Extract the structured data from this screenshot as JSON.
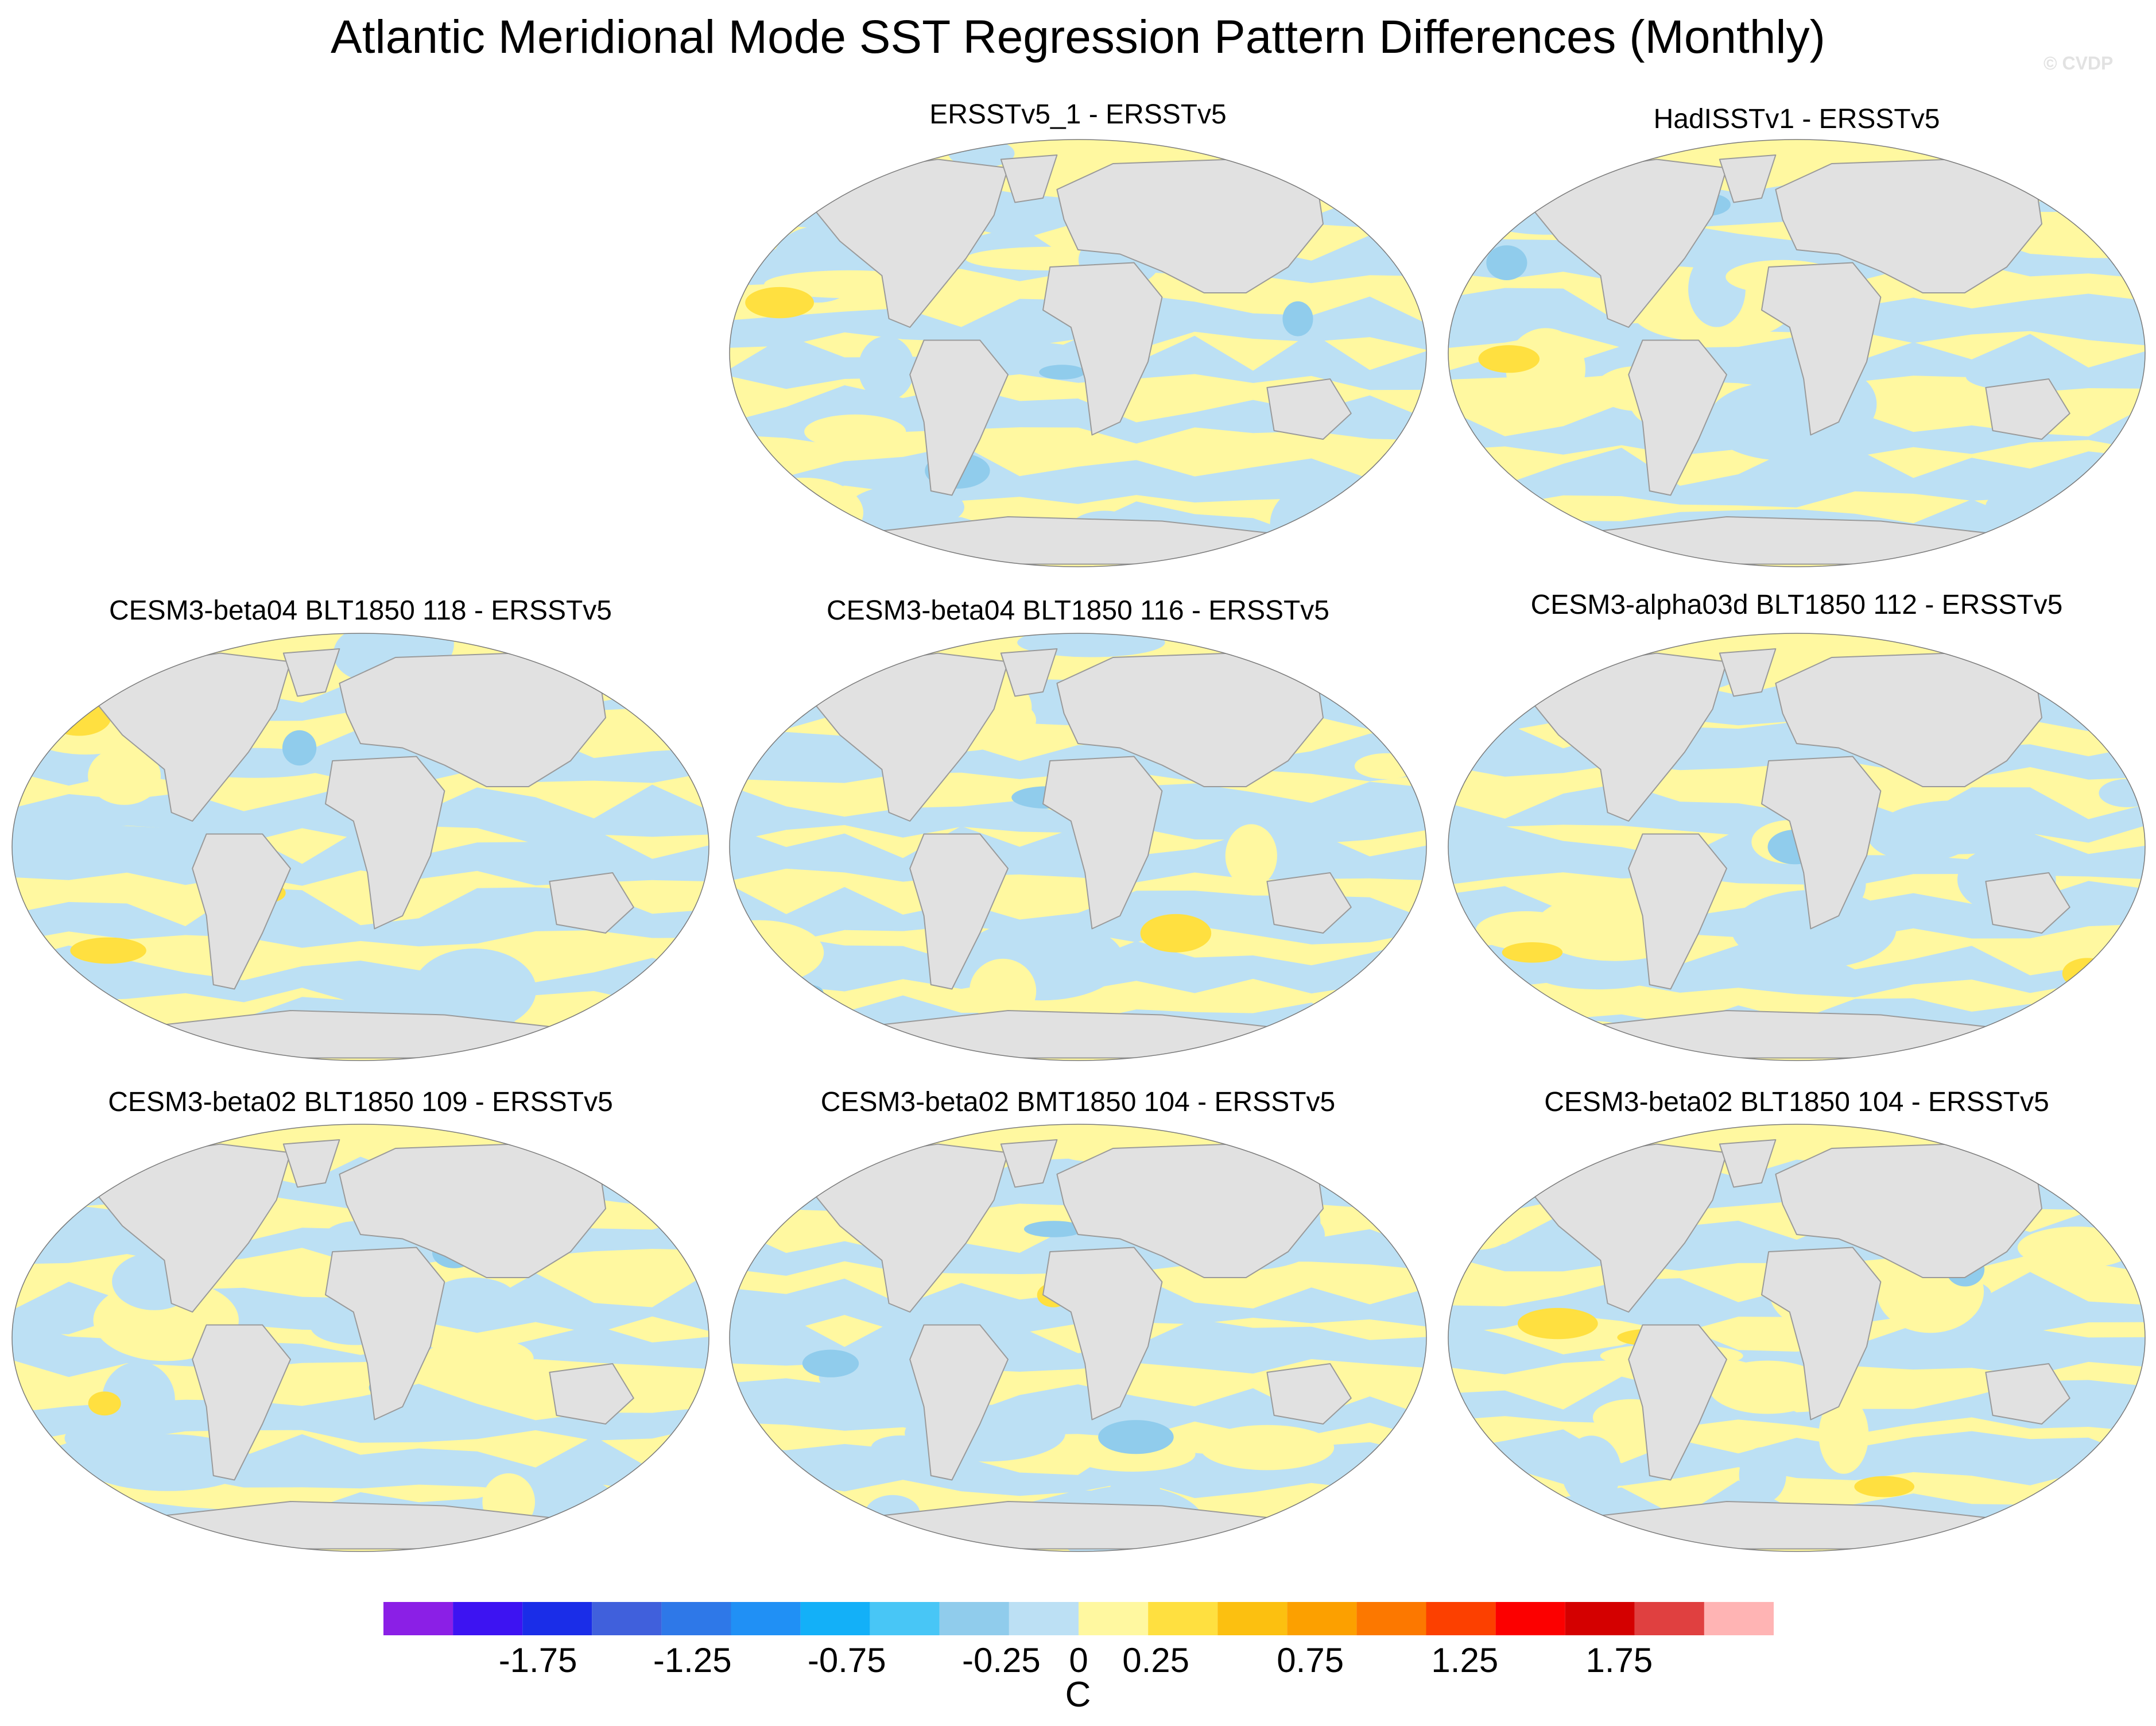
{
  "title": "Atlantic Meridional Mode SST Regression Pattern Differences (Monthly)",
  "watermark": "© CVDP",
  "panels": [
    {
      "id": "p1",
      "title": "ERSSTv5_1 - ERSSTv5"
    },
    {
      "id": "p2",
      "title": "HadISSTv1 - ERSSTv5"
    },
    {
      "id": "p3",
      "title": "CESM3-beta04 BLT1850 118 - ERSSTv5"
    },
    {
      "id": "p4",
      "title": "CESM3-beta04 BLT1850 116 - ERSSTv5"
    },
    {
      "id": "p5",
      "title": "CESM3-alpha03d BLT1850 112 - ERSSTv5"
    },
    {
      "id": "p6",
      "title": "CESM3-beta02 BLT1850 109 - ERSSTv5"
    },
    {
      "id": "p7",
      "title": "CESM3-beta02 BMT1850 104 - ERSSTv5"
    },
    {
      "id": "p8",
      "title": "CESM3-beta02 BLT1850 104 - ERSSTv5"
    }
  ],
  "colorbar": {
    "unit": "C",
    "colors": [
      "#8b1fe6",
      "#3d13f2",
      "#1a2de8",
      "#4060dc",
      "#2e78e8",
      "#2090f5",
      "#13b0f8",
      "#48c6f6",
      "#90ccec",
      "#bce0f4",
      "#fff8a0",
      "#ffe040",
      "#fcc010",
      "#fca000",
      "#fc7800",
      "#fc4000",
      "#fc0000",
      "#d40000",
      "#e04040",
      "#ffb4b4"
    ],
    "tick_labels": [
      "-1.75",
      "-1.25",
      "-0.75",
      "-0.25",
      "0",
      "0.25",
      "0.75",
      "1.25",
      "1.75"
    ],
    "tick_values": [
      -1.75,
      -1.25,
      -0.75,
      -0.25,
      0,
      0.25,
      0.75,
      1.25,
      1.75
    ],
    "range": [
      -2.25,
      2.25
    ]
  },
  "colors": {
    "land": "#e1e1e1",
    "coast": "#9a9a9a",
    "ocean_pos": "#fff8a0",
    "ocean_neg": "#bce0f4",
    "warm_patch": "#ffe040",
    "cool_patch": "#90ccec"
  }
}
